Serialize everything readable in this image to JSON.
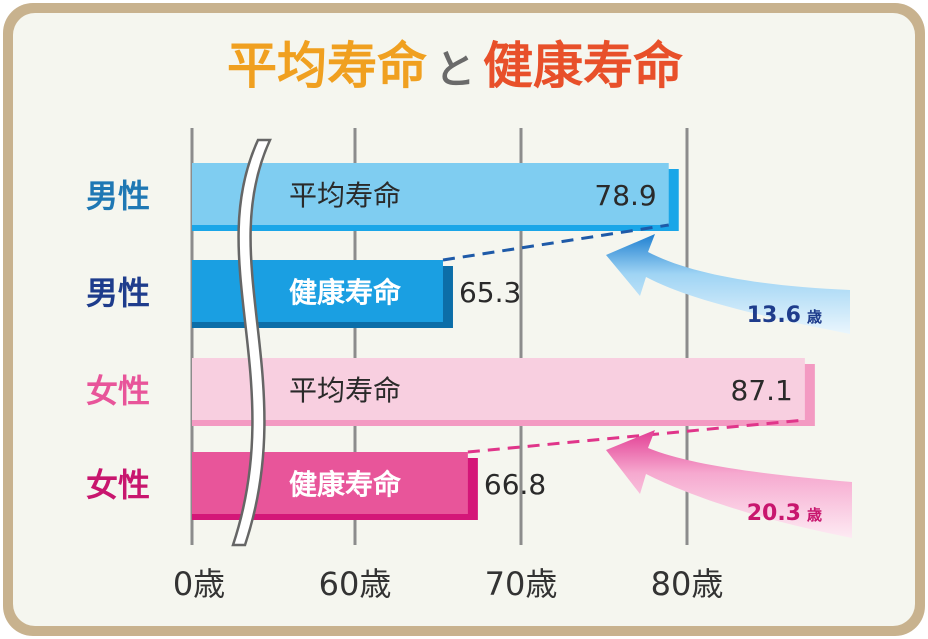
{
  "title": {
    "part1": "平均寿命",
    "connector": "と",
    "part2": "健康寿命"
  },
  "colors": {
    "frame": "#c8b28e",
    "panel": "#f5f6ef",
    "title_orange": "#f0a020",
    "title_red": "#e8502a",
    "title_gray": "#6a6a6a",
    "male_label": "#1f78b4",
    "male_label_dark": "#1e3c8c",
    "female_label": "#e8559a",
    "female_label_dark": "#c8166e",
    "male_avg": "#7fcdf1",
    "male_avg_shadow": "#1aa6e8",
    "male_health": "#1a9fe2",
    "male_health_shadow": "#0c6ea8",
    "female_avg": "#f8cfe0",
    "female_avg_shadow": "#f39ac2",
    "female_health": "#e8559a",
    "female_health_shadow": "#d41678",
    "gap_male": "#1e5aa8",
    "gap_female": "#e0358a"
  },
  "chart_data": {
    "type": "bar",
    "orientation": "horizontal",
    "axis": {
      "ticks": [
        "0歳",
        "60歳",
        "70歳",
        "80歳"
      ],
      "tick_values": [
        0,
        60,
        70,
        80
      ],
      "break": [
        0,
        60
      ],
      "xlim": [
        60,
        90
      ]
    },
    "rows": [
      {
        "group": "男性",
        "label": "平均寿命",
        "value": 78.9,
        "value_label": "78.9"
      },
      {
        "group": "男性",
        "label": "健康寿命",
        "value": 65.3,
        "value_label": "65.3"
      },
      {
        "group": "女性",
        "label": "平均寿命",
        "value": 87.1,
        "value_label": "87.1"
      },
      {
        "group": "女性",
        "label": "健康寿命",
        "value": 66.8,
        "value_label": "66.8"
      }
    ],
    "gaps": [
      {
        "group": "男性",
        "value": 13.6,
        "number": "13.6",
        "unit": "歳"
      },
      {
        "group": "女性",
        "value": 20.3,
        "number": "20.3",
        "unit": "歳"
      }
    ]
  }
}
